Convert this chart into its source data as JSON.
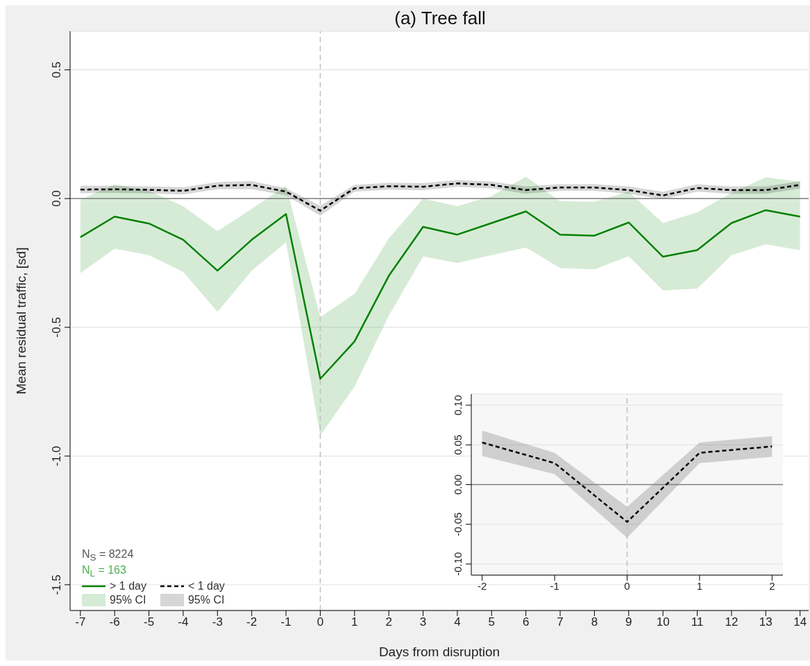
{
  "chart_data": [
    {
      "type": "line",
      "title": "(a) Tree fall",
      "xlabel": "Days from disruption",
      "ylabel": "Mean residual traffic, [sd]",
      "x": [
        -7,
        -6,
        -5,
        -4,
        -3,
        -2,
        -1,
        0,
        1,
        2,
        3,
        4,
        5,
        6,
        7,
        8,
        9,
        10,
        11,
        12,
        13,
        14
      ],
      "series": [
        {
          "name": "> 1 day",
          "color": "#008000",
          "line_style": "solid",
          "values": [
            -0.15,
            -0.07,
            -0.097,
            -0.16,
            -0.28,
            -0.16,
            -0.06,
            -0.7,
            -0.555,
            -0.3,
            -0.11,
            -0.14,
            -0.095,
            -0.05,
            -0.14,
            -0.144,
            -0.093,
            -0.226,
            -0.2,
            -0.095,
            -0.045,
            -0.07
          ],
          "lower": [
            -0.29,
            -0.195,
            -0.22,
            -0.285,
            -0.44,
            -0.28,
            -0.17,
            -0.92,
            -0.73,
            -0.455,
            -0.225,
            -0.25,
            -0.22,
            -0.19,
            -0.27,
            -0.275,
            -0.224,
            -0.357,
            -0.35,
            -0.22,
            -0.178,
            -0.2
          ],
          "upper": [
            -0.005,
            0.055,
            0.03,
            -0.03,
            -0.127,
            -0.04,
            0.05,
            -0.46,
            -0.37,
            -0.155,
            0.0,
            -0.03,
            0.01,
            0.085,
            -0.01,
            -0.012,
            0.027,
            -0.095,
            -0.053,
            0.022,
            0.083,
            0.065
          ]
        },
        {
          "name": "< 1 day",
          "color": "#000000",
          "line_style": "dashed",
          "values": [
            0.035,
            0.036,
            0.034,
            0.03,
            0.05,
            0.053,
            0.027,
            -0.047,
            0.04,
            0.048,
            0.046,
            0.059,
            0.053,
            0.033,
            0.043,
            0.043,
            0.033,
            0.012,
            0.041,
            0.033,
            0.033,
            0.053
          ],
          "lower": [
            0.021,
            0.022,
            0.02,
            0.016,
            0.036,
            0.036,
            0.013,
            -0.067,
            0.027,
            0.035,
            0.032,
            0.046,
            0.04,
            0.019,
            0.03,
            0.03,
            0.019,
            -0.002,
            0.027,
            0.019,
            0.019,
            0.039
          ],
          "upper": [
            0.05,
            0.05,
            0.048,
            0.044,
            0.064,
            0.068,
            0.04,
            -0.028,
            0.053,
            0.061,
            0.06,
            0.072,
            0.066,
            0.047,
            0.056,
            0.056,
            0.047,
            0.026,
            0.055,
            0.047,
            0.047,
            0.067
          ]
        }
      ],
      "xlim": [
        -7.3,
        14.25
      ],
      "xticks": [
        -7,
        -6,
        -5,
        -4,
        -3,
        -2,
        -1,
        0,
        1,
        2,
        3,
        4,
        5,
        6,
        7,
        8,
        9,
        10,
        11,
        12,
        13,
        14
      ],
      "ylim": [
        -1.6,
        0.65
      ],
      "yticks": [
        {
          "value": 0.5,
          "label": "0.5"
        },
        {
          "value": 0,
          "label": "0.0"
        },
        {
          "value": -0.5,
          "label": "-0.5"
        },
        {
          "value": -1,
          "label": "-1.0"
        },
        {
          "value": -1.5,
          "label": "-1.5"
        }
      ],
      "grid": "y",
      "legend": "bottom left",
      "ref_lines": [
        {
          "axis": "y",
          "value": 0,
          "color": "#808080",
          "line_style": "solid"
        },
        {
          "axis": "x",
          "value": 0,
          "color": "#c0c0c0",
          "line_style": "dashed"
        }
      ],
      "annotations": [
        "N$_{S}$ = 8224",
        "N$_{L}$ = 163",
        "95% CI",
        "95% CI"
      ]
    },
    {
      "type": "line",
      "x": [
        -2,
        -1,
        0,
        1,
        2
      ],
      "series": [
        {
          "color": "#000000",
          "line_style": "dashed",
          "values": [
            0.053,
            0.027,
            -0.047,
            0.04,
            0.048
          ],
          "lower": [
            0.036,
            0.013,
            -0.067,
            0.027,
            0.035
          ],
          "upper": [
            0.068,
            0.04,
            -0.028,
            0.053,
            0.061
          ]
        }
      ],
      "xlim": [
        -2.15,
        2.15
      ],
      "xticks": [
        -2,
        -1,
        0,
        1,
        2
      ],
      "ylim": [
        -0.114,
        0.114
      ],
      "yticks": [
        {
          "value": -0.1,
          "label": "-0.10"
        },
        {
          "value": -0.05,
          "label": "-0.05"
        },
        {
          "value": 0,
          "label": "0.00"
        },
        {
          "value": 0.05,
          "label": "0.05"
        },
        {
          "value": 0.1,
          "label": "0.10"
        }
      ],
      "grid": "y",
      "ref_lines": [
        {
          "axis": "y",
          "value": 0,
          "color": "#808080",
          "line_style": "solid"
        },
        {
          "axis": "x",
          "value": 0,
          "color": "#c0c0c0",
          "line_style": "dashed"
        }
      ]
    }
  ]
}
